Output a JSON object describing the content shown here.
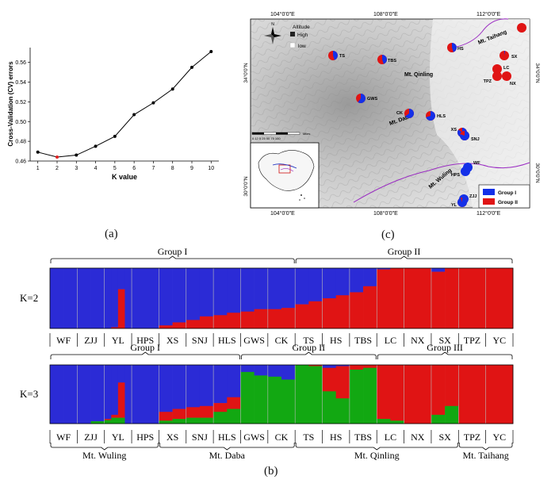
{
  "panel_labels": {
    "a": "(a)",
    "b": "(b)",
    "c": "(c)"
  },
  "chart_data": [
    {
      "type": "line",
      "xlabel": "K value",
      "ylabel": "Cross-Validation (CV) errors",
      "x": [
        1,
        2,
        3,
        4,
        5,
        6,
        7,
        8,
        9,
        10
      ],
      "y": [
        0.469,
        0.464,
        0.466,
        0.475,
        0.485,
        0.507,
        0.519,
        0.533,
        0.555,
        0.571
      ],
      "highlight_x": 2,
      "xlim": [
        0.6,
        10.4
      ],
      "ylim": [
        0.46,
        0.575
      ],
      "yticks": [
        "0.46",
        "0.48",
        "0.50",
        "0.52",
        "0.54",
        "0.56"
      ],
      "colors": {
        "line": "#000000",
        "highlight": "#e02020"
      }
    },
    {
      "type": "bar",
      "categories": [
        "WF",
        "ZJJ",
        "YL",
        "HPS",
        "XS",
        "SNJ",
        "HLS",
        "GWS",
        "CK",
        "TS",
        "HS",
        "TBS",
        "LC",
        "NX",
        "SX",
        "TPZ",
        "YC"
      ],
      "rows": [
        {
          "label": "K=2",
          "group_brackets": [
            {
              "name": "Group I",
              "from": 0,
              "to": 9
            },
            {
              "name": "Group II",
              "from": 9,
              "to": 17
            }
          ],
          "series_names": [],
          "colors": [
            "#2b2bd6",
            "#e01414"
          ],
          "values": [
            [
              [
                1,
                0
              ],
              [
                1,
                0
              ]
            ],
            [
              [
                1,
                0
              ],
              [
                1,
                0
              ]
            ],
            [
              [
                1,
                0
              ],
              [
                0.98,
                0.02
              ],
              [
                0.35,
                0.65
              ],
              [
                1,
                0
              ]
            ],
            [
              [
                1,
                0
              ],
              [
                1,
                0
              ]
            ],
            [
              [
                0.95,
                0.05
              ],
              [
                0.9,
                0.1
              ]
            ],
            [
              [
                0.86,
                0.14
              ],
              [
                0.8,
                0.2
              ]
            ],
            [
              [
                0.78,
                0.22
              ],
              [
                0.74,
                0.26
              ]
            ],
            [
              [
                0.72,
                0.28
              ],
              [
                0.68,
                0.32
              ]
            ],
            [
              [
                0.68,
                0.32
              ],
              [
                0.66,
                0.34
              ]
            ],
            [
              [
                0.6,
                0.4
              ],
              [
                0.55,
                0.45
              ]
            ],
            [
              [
                0.5,
                0.5
              ],
              [
                0.45,
                0.55
              ]
            ],
            [
              [
                0.4,
                0.6
              ],
              [
                0.3,
                0.7
              ]
            ],
            [
              [
                0.02,
                0.98
              ],
              [
                0,
                1
              ]
            ],
            [
              [
                0,
                1
              ],
              [
                0,
                1
              ]
            ],
            [
              [
                0.06,
                0.94
              ],
              [
                0,
                1
              ]
            ],
            [
              [
                0,
                1
              ],
              [
                0,
                1
              ]
            ],
            [
              [
                0,
                1
              ],
              [
                0,
                1
              ]
            ]
          ]
        },
        {
          "label": "K=3",
          "group_brackets": [
            {
              "name": "Group I",
              "from": 0,
              "to": 7
            },
            {
              "name": "Group II",
              "from": 7,
              "to": 12
            },
            {
              "name": "Group III",
              "from": 12,
              "to": 17
            }
          ],
          "colors": [
            "#2b2bd6",
            "#e01414",
            "#12a812"
          ],
          "values": [
            [
              [
                1,
                0,
                0
              ],
              [
                1,
                0,
                0
              ]
            ],
            [
              [
                1,
                0,
                0
              ],
              [
                0.96,
                0,
                0.04
              ]
            ],
            [
              [
                0.92,
                0.02,
                0.06
              ],
              [
                0.85,
                0.05,
                0.1
              ],
              [
                0.3,
                0.6,
                0.1
              ],
              [
                1,
                0,
                0
              ]
            ],
            [
              [
                1,
                0,
                0
              ],
              [
                1,
                0,
                0
              ]
            ],
            [
              [
                0.8,
                0.15,
                0.05
              ],
              [
                0.75,
                0.17,
                0.08
              ]
            ],
            [
              [
                0.72,
                0.18,
                0.1
              ],
              [
                0.7,
                0.2,
                0.1
              ]
            ],
            [
              [
                0.65,
                0.15,
                0.2
              ],
              [
                0.55,
                0.2,
                0.25
              ]
            ],
            [
              [
                0.12,
                0,
                0.88
              ],
              [
                0.18,
                0,
                0.82
              ]
            ],
            [
              [
                0.2,
                0,
                0.8
              ],
              [
                0.25,
                0,
                0.75
              ]
            ],
            [
              [
                0,
                0,
                1
              ],
              [
                0,
                0.02,
                0.98
              ]
            ],
            [
              [
                0.05,
                0.4,
                0.55
              ],
              [
                0.02,
                0.55,
                0.43
              ]
            ],
            [
              [
                0,
                0.08,
                0.92
              ],
              [
                0,
                0.05,
                0.95
              ]
            ],
            [
              [
                0,
                0.92,
                0.08
              ],
              [
                0,
                0.95,
                0.05
              ]
            ],
            [
              [
                0,
                1,
                0
              ],
              [
                0,
                1,
                0
              ]
            ],
            [
              [
                0,
                0.85,
                0.15
              ],
              [
                0,
                0.7,
                0.3
              ]
            ],
            [
              [
                0,
                1,
                0
              ],
              [
                0,
                1,
                0
              ]
            ],
            [
              [
                0,
                1,
                0
              ],
              [
                0,
                1,
                0
              ]
            ]
          ]
        }
      ],
      "mountain_brackets": [
        {
          "name": "Mt. Wuling",
          "from": 0,
          "to": 4
        },
        {
          "name": "Mt. Daba",
          "from": 4,
          "to": 9
        },
        {
          "name": "Mt. Qinling",
          "from": 9,
          "to": 15
        },
        {
          "name": "Mt. Taihang",
          "from": 15,
          "to": 17
        }
      ]
    }
  ],
  "map": {
    "lat_left": [
      "34°0'0\"N",
      "30°0'0\"N"
    ],
    "lat_right": [
      "34°0'0\"N",
      "30°0'0\"N"
    ],
    "lon_top": [
      "104°0'0\"E",
      "108°0'0\"E",
      "112°0'0\"E"
    ],
    "lon_bottom": [
      "104°0'0\"E",
      "108°0'0\"E",
      "112°0'0\"E"
    ],
    "altitude_title": "Altitude",
    "altitude_high": "High",
    "altitude_low": "low",
    "scale_text": "0 12.5 25    50    75    100",
    "scale_unit": "Miles",
    "mountains": [
      {
        "name": "Mt. Qinling",
        "key": "qinling"
      },
      {
        "name": "Mt. Daba",
        "key": "daba"
      },
      {
        "name": "Mt. Wuling",
        "key": "wuling"
      },
      {
        "name": "Mt. Taihang",
        "key": "taihang"
      }
    ],
    "legend": [
      {
        "name": "Group I",
        "color": "#1430e8"
      },
      {
        "name": "Group II",
        "color": "#e01414"
      }
    ],
    "sites": [
      {
        "code": "TS",
        "blue": 0.45
      },
      {
        "code": "TBS",
        "blue": 0.45
      },
      {
        "code": "HS",
        "blue": 0.45
      },
      {
        "code": "GWS",
        "blue": 0.6
      },
      {
        "code": "CK",
        "blue": 0.65
      },
      {
        "code": "HLS",
        "blue": 0.7
      },
      {
        "code": "XS",
        "blue": 0.85
      },
      {
        "code": "SNJ",
        "blue": 0.8
      },
      {
        "code": "WF",
        "blue": 1
      },
      {
        "code": "HPS",
        "blue": 1
      },
      {
        "code": "ZJJ",
        "blue": 1
      },
      {
        "code": "YL",
        "blue": 0.95
      },
      {
        "code": "SX",
        "blue": 0.03
      },
      {
        "code": "LC",
        "blue": 0
      },
      {
        "code": "TPZ",
        "blue": 0
      },
      {
        "code": "NX",
        "blue": 0
      },
      {
        "code": "YC",
        "blue": 0
      }
    ]
  }
}
